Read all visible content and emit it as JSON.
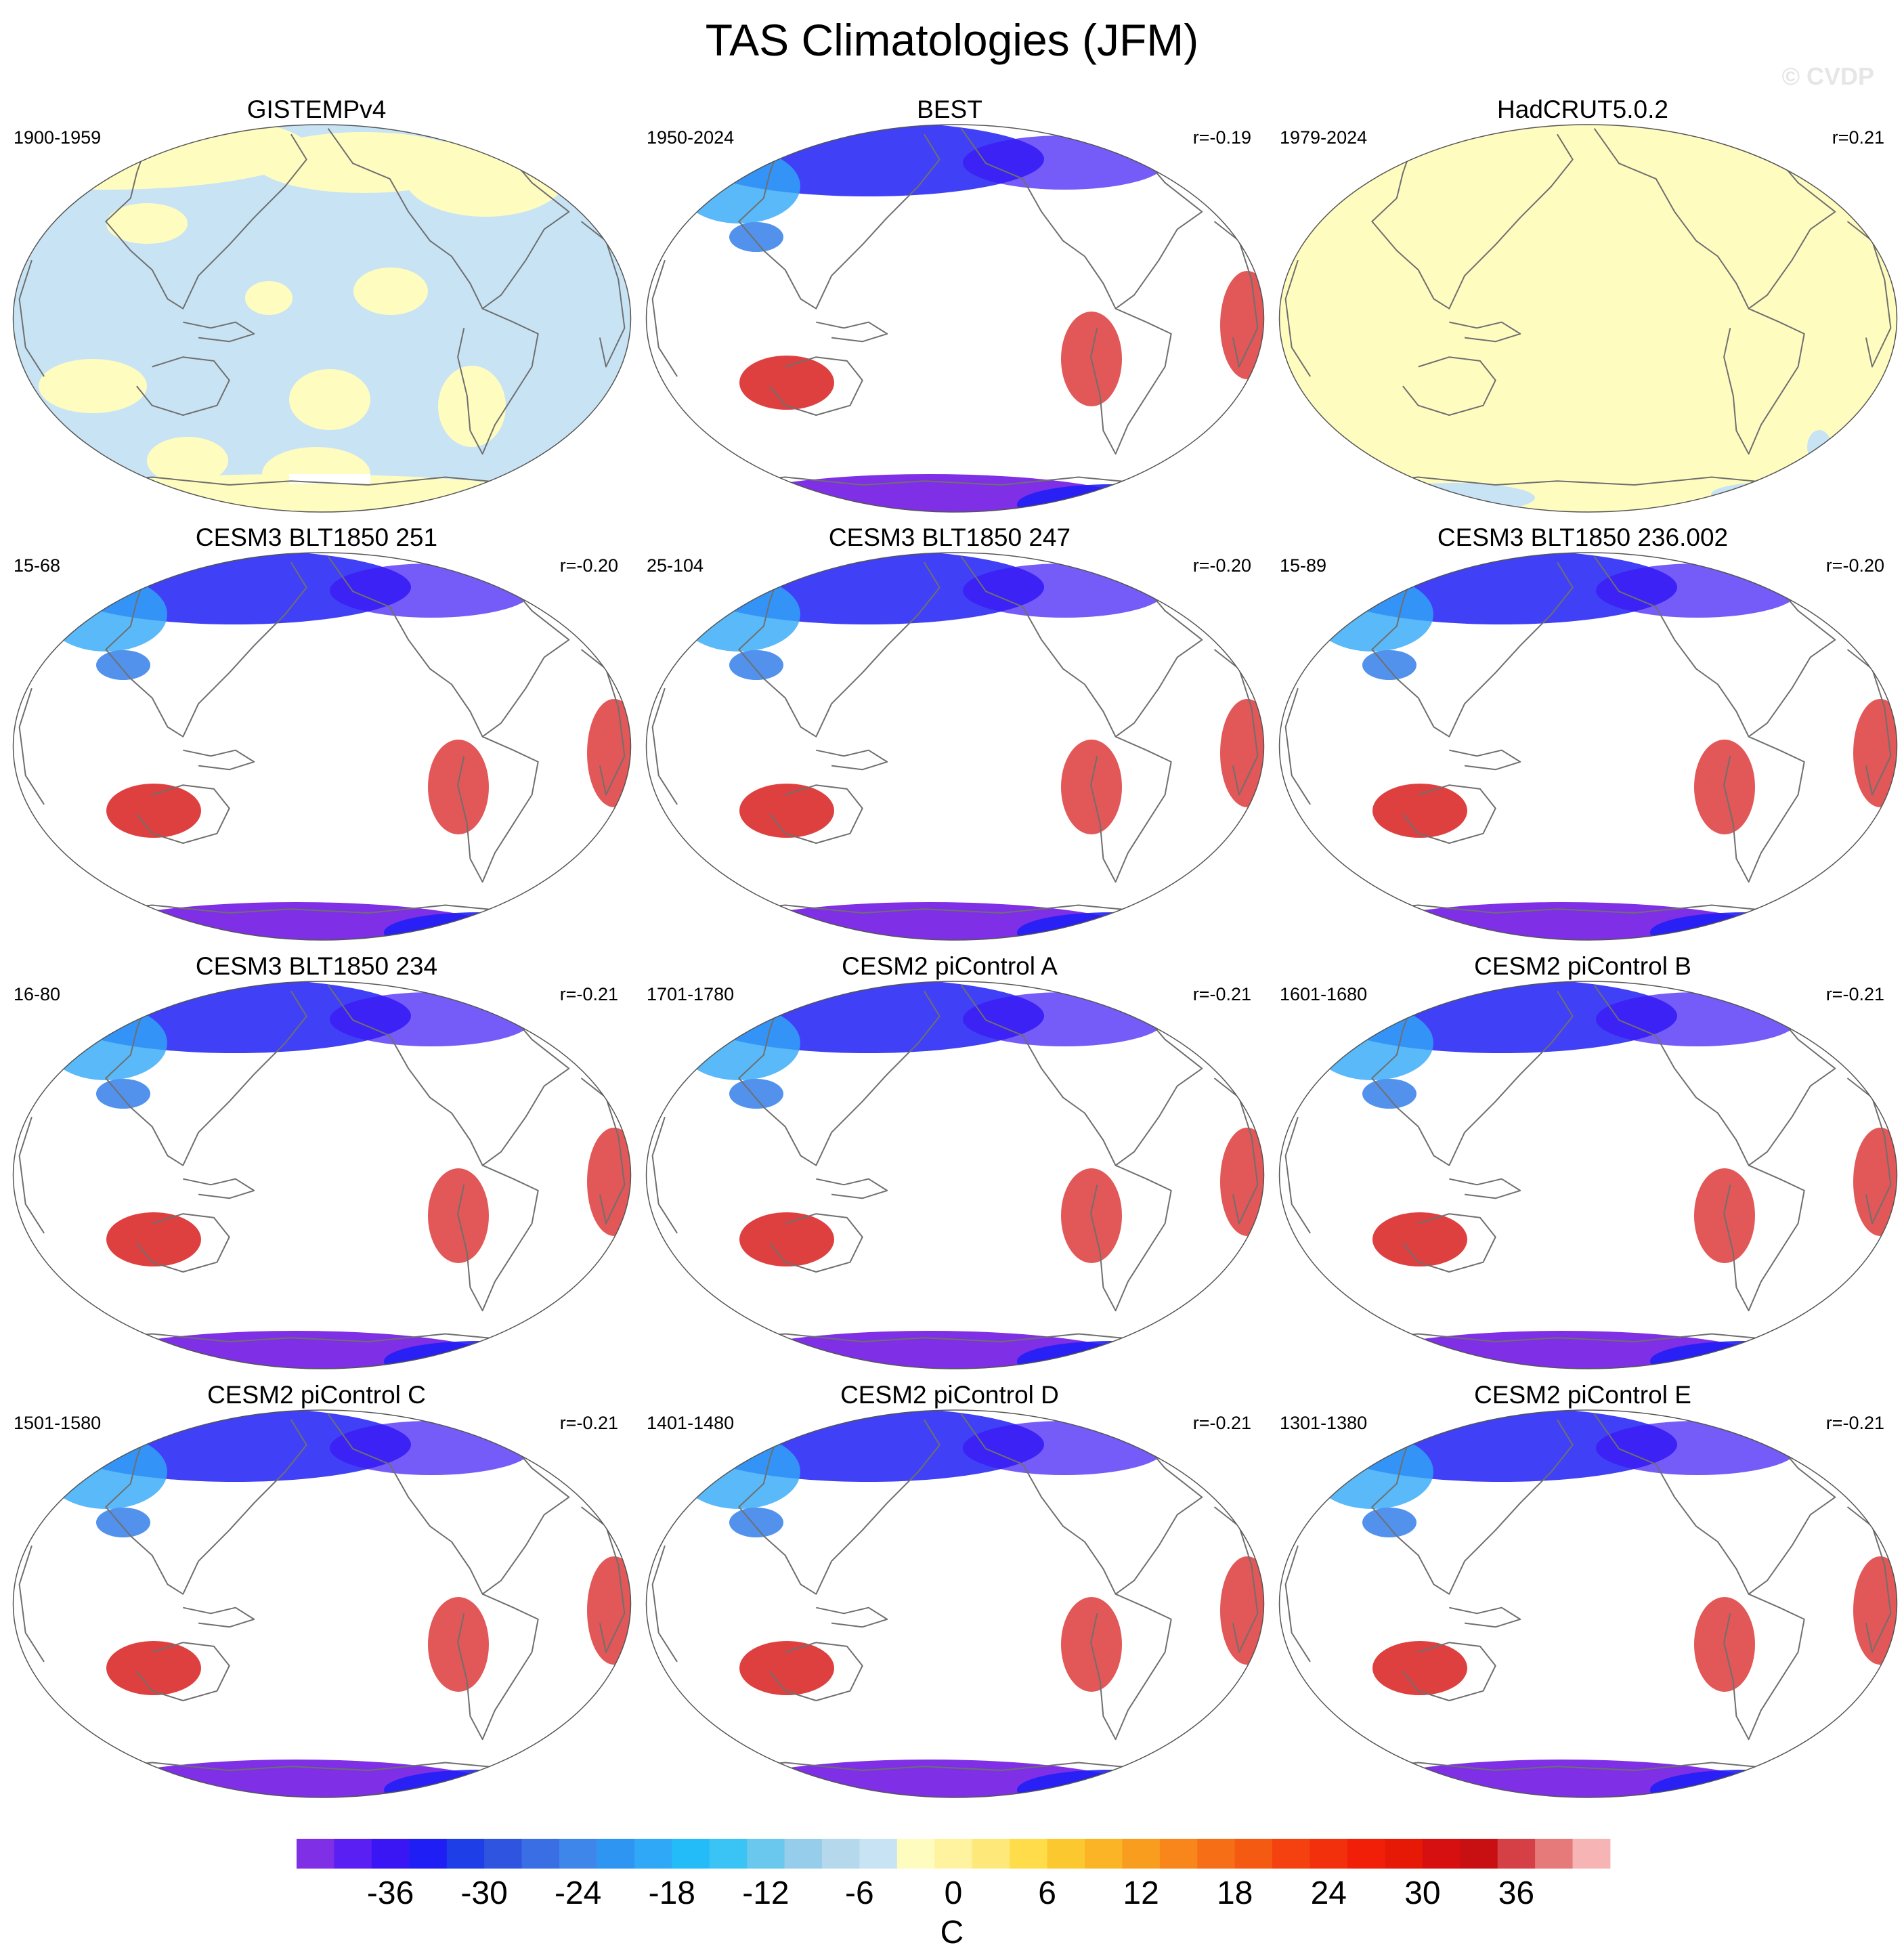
{
  "figure": {
    "title": "TAS Climatologies (JFM)",
    "watermark": "© CVDP",
    "units": "C"
  },
  "chart_data": {
    "type": "heatmap",
    "variable": "TAS",
    "season": "JFM",
    "projection": "Robinson / ellipse world maps, Pacific-centered",
    "panels": [
      {
        "title": "GISTEMPv4",
        "years": "1900-1959",
        "corr": "",
        "style": "obs_anomaly_binary"
      },
      {
        "title": "BEST",
        "years": "1950-2024",
        "corr": "r=-0.19",
        "style": "climatology"
      },
      {
        "title": "HadCRUT5.0.2",
        "years": "1979-2024",
        "corr": "r=0.21",
        "style": "obs_anomaly_pale"
      },
      {
        "title": "CESM3 BLT1850 251",
        "years": "15-68",
        "corr": "r=-0.20",
        "style": "climatology"
      },
      {
        "title": "CESM3 BLT1850 247",
        "years": "25-104",
        "corr": "r=-0.20",
        "style": "climatology"
      },
      {
        "title": "CESM3 BLT1850 236.002",
        "years": "15-89",
        "corr": "r=-0.20",
        "style": "climatology"
      },
      {
        "title": "CESM3 BLT1850 234",
        "years": "16-80",
        "corr": "r=-0.21",
        "style": "climatology"
      },
      {
        "title": "CESM2 piControl A",
        "years": "1701-1780",
        "corr": "r=-0.21",
        "style": "climatology"
      },
      {
        "title": "CESM2 piControl B",
        "years": "1601-1680",
        "corr": "r=-0.21",
        "style": "climatology"
      },
      {
        "title": "CESM2 piControl C",
        "years": "1501-1580",
        "corr": "r=-0.21",
        "style": "climatology"
      },
      {
        "title": "CESM2 piControl D",
        "years": "1401-1480",
        "corr": "r=-0.21",
        "style": "climatology"
      },
      {
        "title": "CESM2 piControl E",
        "years": "1301-1380",
        "corr": "r=-0.21",
        "style": "climatology"
      }
    ],
    "colorbar": {
      "units": "C",
      "range": [
        -42,
        42
      ],
      "interval": 3,
      "tick_labels": [
        "-36",
        "-30",
        "-24",
        "-18",
        "-12",
        "-6",
        "0",
        "6",
        "12",
        "18",
        "24",
        "30",
        "36"
      ],
      "colors": [
        "#7f2fe6",
        "#5a1ff2",
        "#3a16f5",
        "#1f1ff5",
        "#1e3fe8",
        "#2f55e0",
        "#3a6ee4",
        "#3f86ea",
        "#2f95f2",
        "#2fa8f7",
        "#24bcf8",
        "#3ac4f5",
        "#6ac7ee",
        "#95cdeb",
        "#b5d8ec",
        "#c8e4f4",
        "#fffcc0",
        "#fff3a0",
        "#ffe87a",
        "#fedc4a",
        "#fcc830",
        "#fbb426",
        "#f99d1f",
        "#f8861a",
        "#f66f16",
        "#f55a13",
        "#f4410f",
        "#f2300c",
        "#f21f08",
        "#e61907",
        "#d61010",
        "#c80f12",
        "#d54046",
        "#e67a7a",
        "#f7b4b4"
      ]
    }
  }
}
